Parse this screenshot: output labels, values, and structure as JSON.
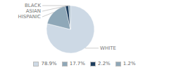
{
  "chart_data": {
    "type": "pie",
    "categories": [
      "WHITE",
      "HISPANIC",
      "ASIAN",
      "BLACK"
    ],
    "values": [
      78.9,
      17.7,
      2.2,
      1.2
    ],
    "value_labels": [
      "78.9%",
      "17.7%",
      "2.2%",
      "1.2%"
    ],
    "colors": [
      "#cdd9e5",
      "#8fa8b8",
      "#1f3f5f",
      "#8fa8b8"
    ],
    "legend": "bottom"
  }
}
